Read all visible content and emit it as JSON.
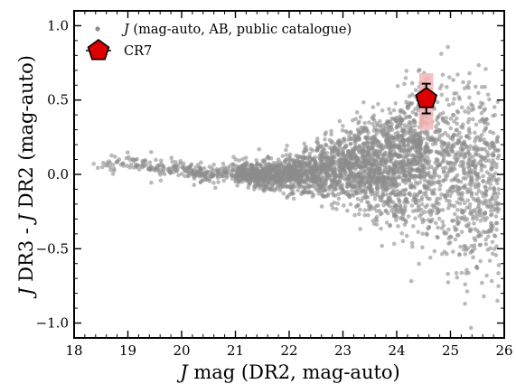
{
  "chart_data": {
    "type": "scatter",
    "xlabel_var": "J",
    "xlabel_rest": " mag (DR2, mag-auto)",
    "ylabel_var1": "J",
    "ylabel_mid": " DR3 - ",
    "ylabel_var2": "J",
    "ylabel_rest": " DR2 (mag-auto)",
    "xlim": [
      18,
      26
    ],
    "ylim": [
      -1.1,
      1.1
    ],
    "xticks": [
      18,
      19,
      20,
      21,
      22,
      23,
      24,
      25,
      26
    ],
    "xtick_labels": [
      "18",
      "19",
      "20",
      "21",
      "22",
      "23",
      "24",
      "25",
      "26"
    ],
    "yticks": [
      1.0,
      0.5,
      0.0,
      -0.5,
      -1.0
    ],
    "ytick_labels": [
      "1.0",
      "0.5",
      "0.0",
      "−0.5",
      "−1.0"
    ],
    "grid": false,
    "legend_position": "top-left",
    "series": [
      {
        "name_var": "J",
        "name_rest": " (mag-auto, AB, public catalogue)",
        "color": "#8c8c8c",
        "marker": "dot",
        "cloud": {
          "count": 3600,
          "x_range": [
            18.2,
            25.9
          ],
          "description_points": [
            [
              18.5,
              0.05
            ],
            [
              19.0,
              0.08
            ],
            [
              19.5,
              0.04
            ],
            [
              20.0,
              0.03
            ],
            [
              20.5,
              0.0
            ],
            [
              21.0,
              0.02
            ],
            [
              21.5,
              0.0
            ],
            [
              22.0,
              0.0
            ],
            [
              22.5,
              0.02
            ],
            [
              23.0,
              0.05
            ],
            [
              23.5,
              0.05
            ],
            [
              24.0,
              0.08
            ],
            [
              24.5,
              0.12
            ],
            [
              25.0,
              0.05
            ],
            [
              25.5,
              -0.05
            ]
          ],
          "scatter_by_mag": [
            [
              18.0,
              0.035
            ],
            [
              19.0,
              0.035
            ],
            [
              20.0,
              0.03
            ],
            [
              21.0,
              0.035
            ],
            [
              22.0,
              0.06
            ],
            [
              23.0,
              0.11
            ],
            [
              24.0,
              0.2
            ],
            [
              25.0,
              0.3
            ],
            [
              26.0,
              0.35
            ]
          ]
        }
      },
      {
        "name": "CR7",
        "color": "#dd0000",
        "marker": "pentagon",
        "points": [
          {
            "x": 24.55,
            "y": 0.51,
            "yerr_low": 0.1,
            "yerr_high": 0.1
          }
        ],
        "band": {
          "x": [
            24.42,
            24.68
          ],
          "y": [
            0.3,
            0.68
          ],
          "color": "#f5b5b5"
        }
      }
    ]
  }
}
